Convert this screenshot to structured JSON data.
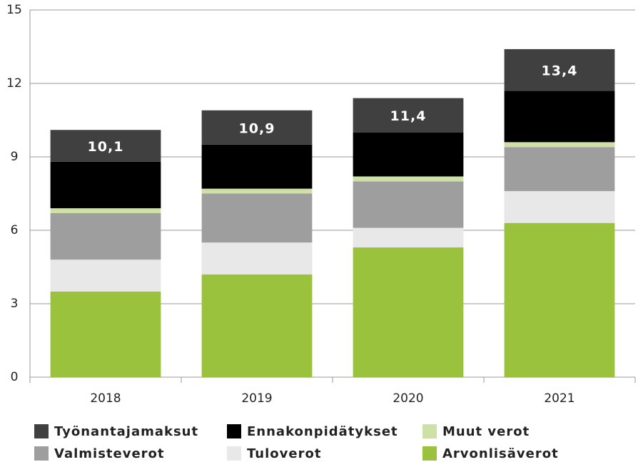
{
  "chart_data": {
    "type": "stacked_bar",
    "categories": [
      "2018",
      "2019",
      "2020",
      "2021"
    ],
    "series": [
      {
        "name": "Työnantajamaksut",
        "color": "#404040",
        "values": [
          1.3,
          1.4,
          1.4,
          1.7
        ]
      },
      {
        "name": "Ennakonpidätykset",
        "color": "#000000",
        "values": [
          1.9,
          1.8,
          1.8,
          2.1
        ]
      },
      {
        "name": "Muut verot",
        "color": "#cfe0a6",
        "values": [
          0.2,
          0.2,
          0.2,
          0.2
        ]
      },
      {
        "name": "Valmisteverot",
        "color": "#9e9e9e",
        "values": [
          1.9,
          2.0,
          1.9,
          1.8
        ]
      },
      {
        "name": "Tuloverot",
        "color": "#e8e8e8",
        "values": [
          1.3,
          1.3,
          0.8,
          1.3
        ]
      },
      {
        "name": "Arvonlisäverot",
        "color": "#9bc23c",
        "values": [
          3.5,
          4.2,
          5.3,
          6.3
        ]
      }
    ],
    "totals": [
      10.1,
      10.9,
      11.4,
      13.4
    ],
    "total_labels": [
      "10,1",
      "10,9",
      "11,4",
      "13,4"
    ],
    "ylim": [
      0,
      15
    ],
    "yticks": [
      0,
      3,
      6,
      9,
      12,
      15
    ],
    "grid": true
  }
}
